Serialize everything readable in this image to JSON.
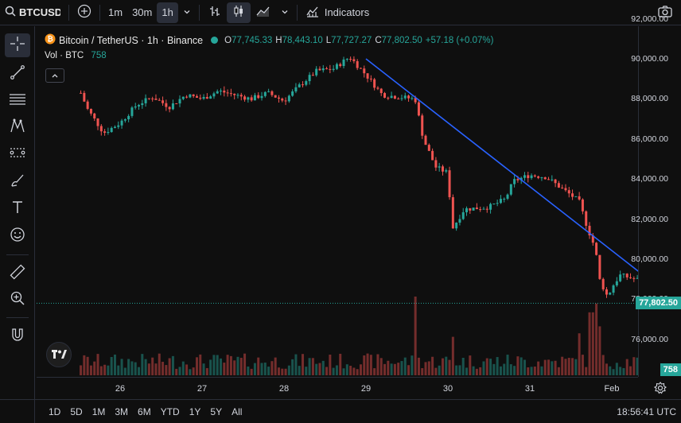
{
  "toolbar": {
    "symbol": "BTCUSDT",
    "intervals": [
      "1m",
      "30m",
      "1h"
    ],
    "active_interval": "1h",
    "indicators_label": "Indicators"
  },
  "legend": {
    "title": "Bitcoin / TetherUS · 1h · Binance",
    "o_label": "O",
    "o": "77,745.33",
    "h_label": "H",
    "h": "78,443.10",
    "l_label": "L",
    "l": "77,727.27",
    "c_label": "C",
    "c": "77,802.50",
    "change": "+57.18 (+0.07%)",
    "vol_label": "Vol · BTC",
    "vol_value": "758"
  },
  "colors": {
    "up": "#26a69a",
    "down": "#ef5350",
    "trendline": "#2962ff",
    "background": "#0f0f0f"
  },
  "price_axis": {
    "labels": [
      "92,000.00",
      "90,000.00",
      "88,000.00",
      "86,000.00",
      "84,000.00",
      "82,000.00",
      "80,000.00",
      "78,000.00",
      "76,000.00"
    ],
    "last_price": "77,802.50",
    "volume_badge": "758"
  },
  "time_axis": {
    "labels": [
      "26",
      "27",
      "28",
      "29",
      "30",
      "31",
      "Feb"
    ]
  },
  "bottom": {
    "ranges": [
      "1D",
      "5D",
      "1M",
      "3M",
      "6M",
      "YTD",
      "1Y",
      "5Y",
      "All"
    ],
    "clock": "18:56:41 UTC"
  },
  "chart_data": {
    "type": "candlestick",
    "ylim": [
      75000,
      92500
    ],
    "trendline": {
      "start": {
        "day": 29.0,
        "price": 90000
      },
      "end": {
        "day": 32.7,
        "price": 78200
      }
    },
    "last_close": 77802.5,
    "anchors": [
      [
        25.5,
        88500
      ],
      [
        25.6,
        87500
      ],
      [
        25.8,
        86300
      ],
      [
        26.0,
        86800
      ],
      [
        26.2,
        87700
      ],
      [
        26.4,
        88100
      ],
      [
        26.6,
        87600
      ],
      [
        26.8,
        88200
      ],
      [
        27.0,
        88000
      ],
      [
        27.2,
        88400
      ],
      [
        27.4,
        88200
      ],
      [
        27.6,
        88000
      ],
      [
        27.8,
        88300
      ],
      [
        28.0,
        87900
      ],
      [
        28.2,
        88700
      ],
      [
        28.4,
        89400
      ],
      [
        28.6,
        89500
      ],
      [
        28.8,
        90100
      ],
      [
        29.0,
        89200
      ],
      [
        29.2,
        88200
      ],
      [
        29.4,
        88100
      ],
      [
        29.6,
        88000
      ],
      [
        29.7,
        86000
      ],
      [
        29.85,
        84600
      ],
      [
        30.0,
        84300
      ],
      [
        30.05,
        81500
      ],
      [
        30.2,
        82500
      ],
      [
        30.5,
        82600
      ],
      [
        30.7,
        83000
      ],
      [
        30.8,
        83900
      ],
      [
        31.0,
        84200
      ],
      [
        31.2,
        84100
      ],
      [
        31.4,
        83500
      ],
      [
        31.6,
        82900
      ],
      [
        31.7,
        81600
      ],
      [
        31.8,
        80500
      ],
      [
        31.85,
        79000
      ],
      [
        31.95,
        78100
      ],
      [
        32.0,
        78600
      ],
      [
        32.1,
        79200
      ],
      [
        32.3,
        79000
      ],
      [
        32.5,
        78700
      ],
      [
        32.65,
        78000
      ],
      [
        32.85,
        77800
      ]
    ],
    "volume_spikes": [
      [
        29.6,
        4.5
      ],
      [
        30.05,
        2.2
      ],
      [
        31.6,
        2.4
      ],
      [
        31.75,
        3.6
      ],
      [
        31.8,
        4.1
      ],
      [
        31.85,
        2.8
      ],
      [
        32.6,
        1.1
      ]
    ]
  }
}
